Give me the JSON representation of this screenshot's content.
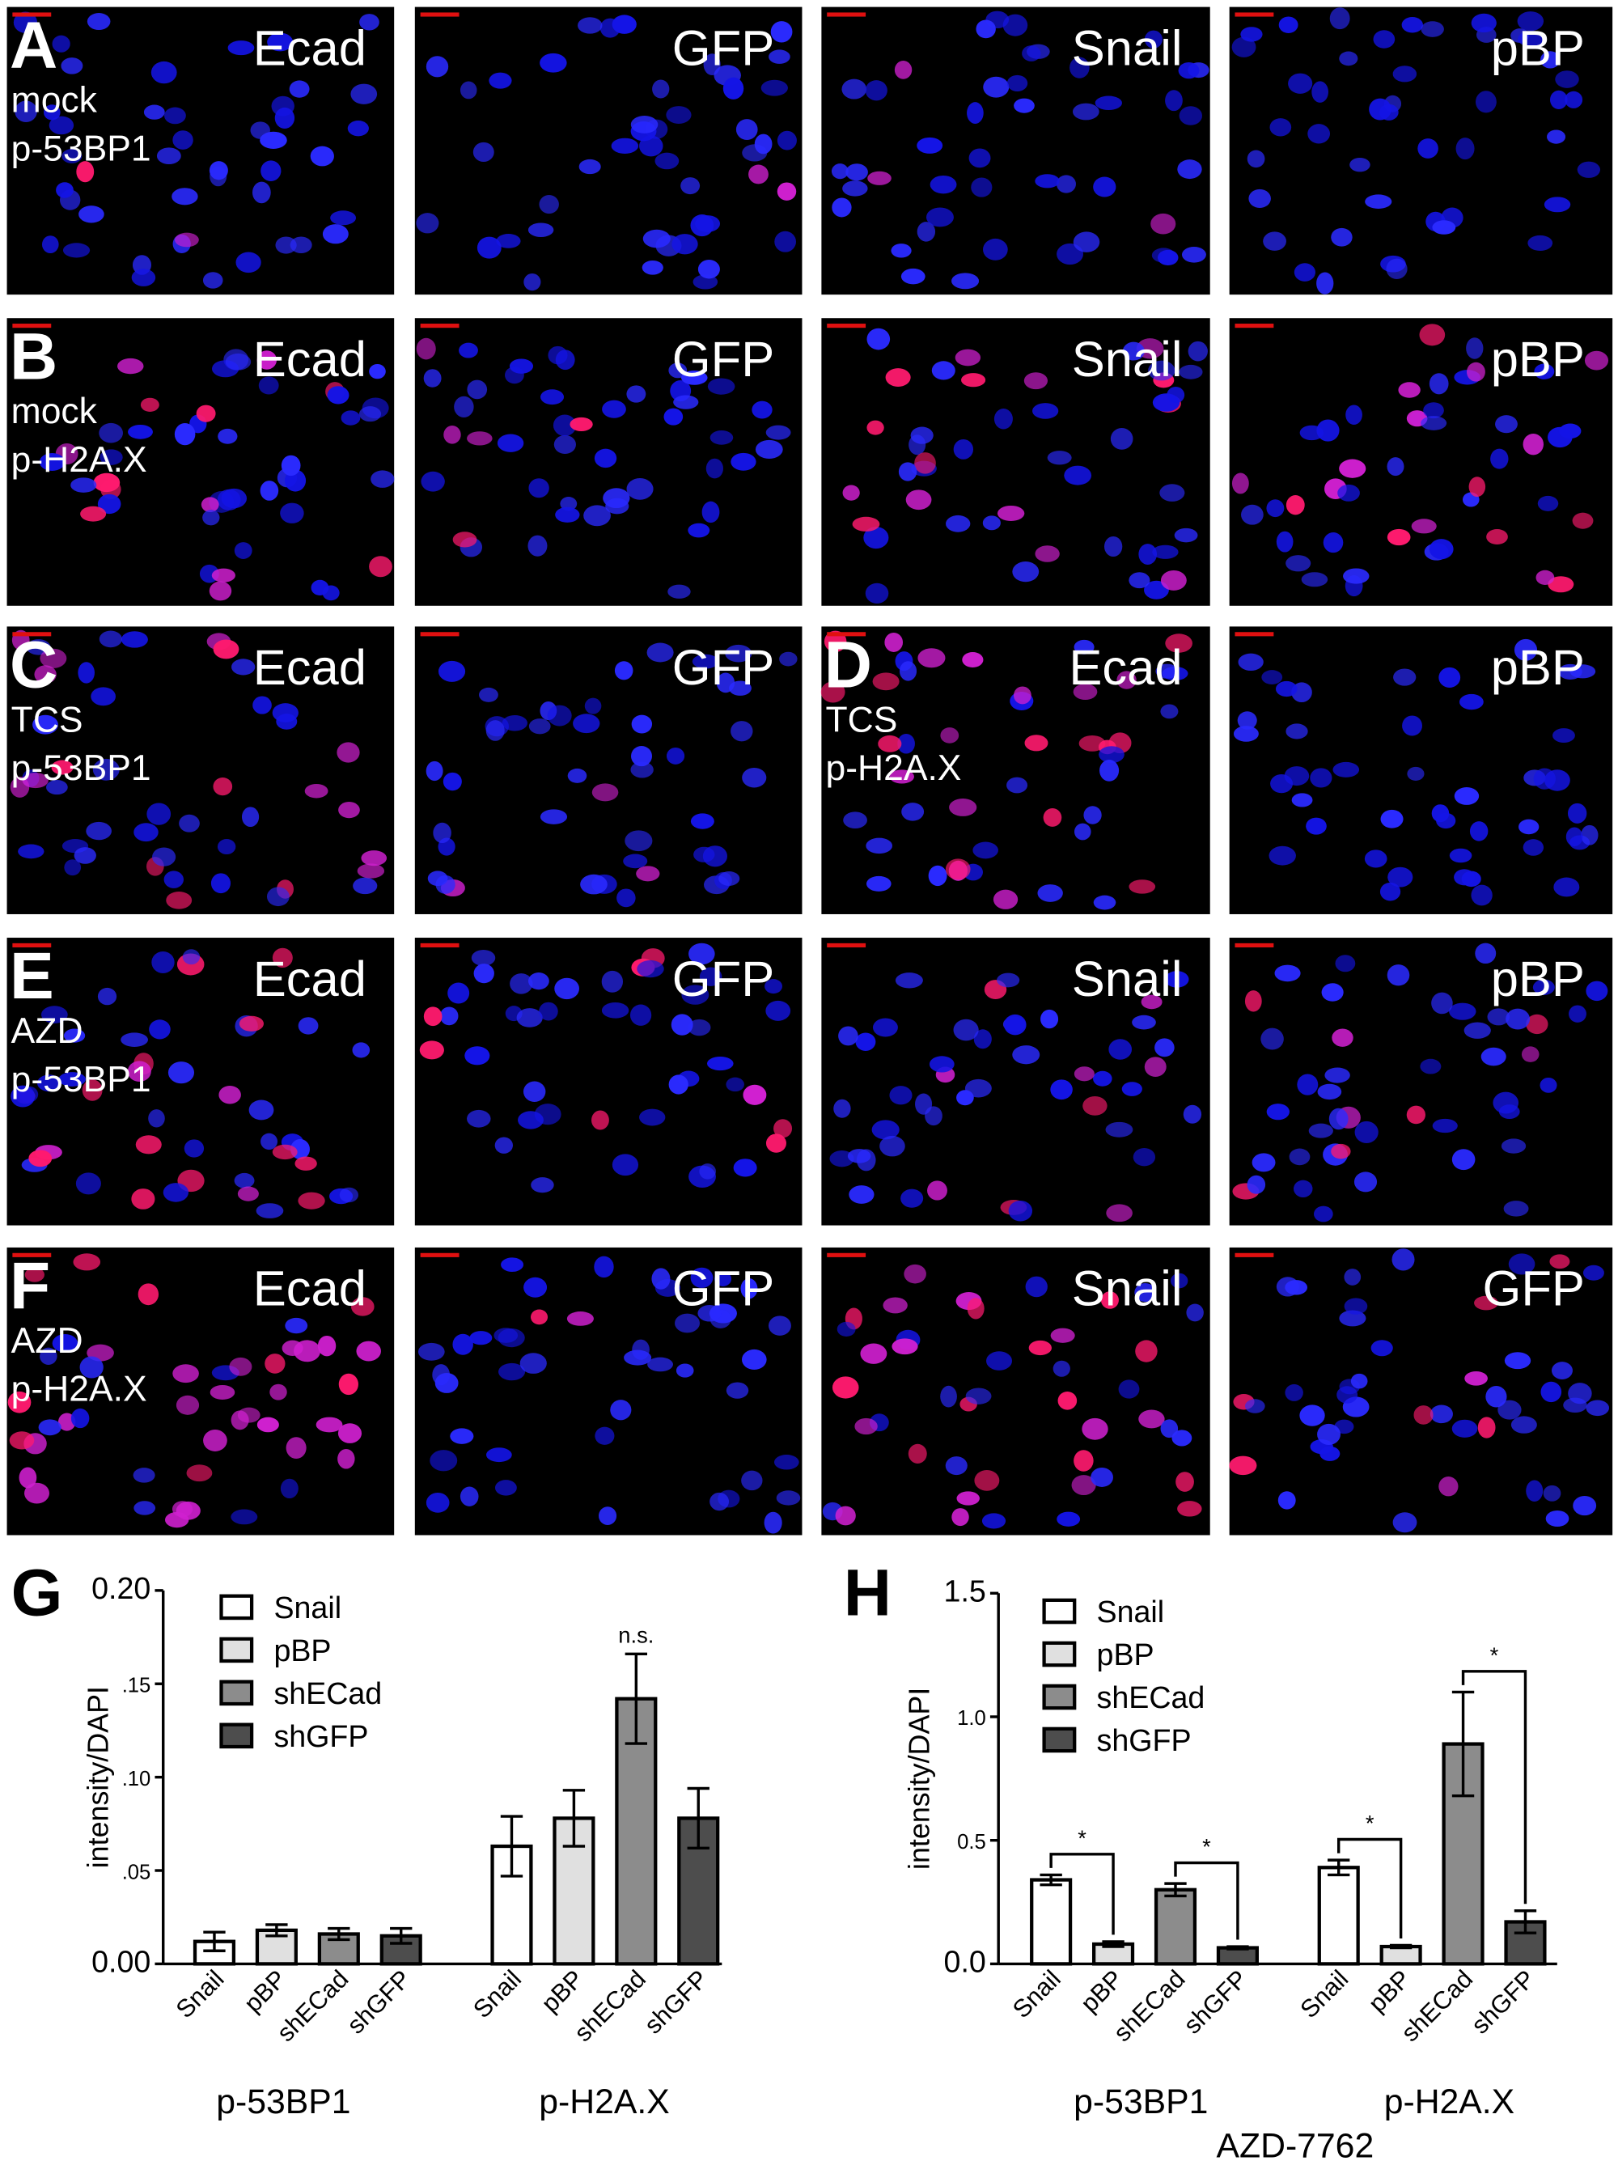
{
  "panels": [
    {
      "cells": [
        {
          "letter": "A",
          "lines": [
            "mock",
            "p-53BP1"
          ],
          "label": "Ecad"
        },
        {
          "label": "GFP"
        },
        {
          "label": "Snail"
        },
        {
          "label": "pBP"
        }
      ]
    },
    {
      "cells": [
        {
          "letter": "B",
          "lines": [
            "mock",
            "p-H2A.X"
          ],
          "label": "Ecad"
        },
        {
          "label": "GFP"
        },
        {
          "label": "Snail"
        },
        {
          "label": "pBP"
        }
      ]
    },
    {
      "cells": [
        {
          "letter": "C",
          "lines": [
            "TCS",
            "p-53BP1"
          ],
          "label": "Ecad"
        },
        {
          "label": "GFP"
        },
        {
          "letter": "D",
          "lines": [
            "TCS",
            "p-H2A.X"
          ],
          "label": "Ecad"
        },
        {
          "label": "pBP"
        }
      ]
    },
    {
      "cells": [
        {
          "letter": "E",
          "lines": [
            "AZD",
            "p-53BP1"
          ],
          "label": "Ecad"
        },
        {
          "label": "GFP"
        },
        {
          "label": "Snail"
        },
        {
          "label": "pBP"
        }
      ]
    },
    {
      "cells": [
        {
          "letter": "F",
          "lines": [
            "AZD",
            "p-H2A.X"
          ],
          "label": "Ecad"
        },
        {
          "label": "GFP"
        },
        {
          "label": "Snail"
        },
        {
          "label": "GFP"
        }
      ]
    }
  ],
  "chart_data": [
    {
      "type": "bar",
      "panel": "G",
      "ylabel": "intensity/DAPI",
      "categories": [
        "p-53BP1",
        "p-H2A.X"
      ],
      "series": [
        {
          "name": "Snail",
          "color": "#ffffff",
          "values": [
            0.012,
            0.063
          ],
          "errors": [
            0.005,
            0.016
          ]
        },
        {
          "name": "pBP",
          "color": "#e0e0e0",
          "values": [
            0.018,
            0.078
          ],
          "errors": [
            0.003,
            0.015
          ]
        },
        {
          "name": "shECad",
          "color": "#8c8c8c",
          "values": [
            0.016,
            0.142
          ],
          "errors": [
            0.003,
            0.024
          ]
        },
        {
          "name": "shGFP",
          "color": "#4d4d4d",
          "values": [
            0.015,
            0.078
          ],
          "errors": [
            0.004,
            0.016
          ]
        }
      ],
      "ylim": [
        0,
        0.2
      ],
      "yticks": [
        {
          "value": 0,
          "label": "0.00"
        },
        {
          "value": 0.05,
          "label": ".05"
        },
        {
          "value": 0.1,
          "label": ".10"
        },
        {
          "value": 0.15,
          "label": ".15"
        },
        {
          "value": 0.2,
          "label": "0.20"
        }
      ],
      "annotations": [
        "n.s."
      ]
    },
    {
      "type": "bar",
      "panel": "H",
      "ylabel": "intensity/DAPI",
      "xlabel": "AZD-7762",
      "categories": [
        "p-53BP1",
        "p-H2A.X"
      ],
      "series": [
        {
          "name": "Snail",
          "color": "#ffffff",
          "values": [
            0.34,
            0.39
          ],
          "errors": [
            0.02,
            0.03
          ]
        },
        {
          "name": "pBP",
          "color": "#e0e0e0",
          "values": [
            0.08,
            0.07
          ],
          "errors": [
            0.01,
            0.005
          ]
        },
        {
          "name": "shECad",
          "color": "#8c8c8c",
          "values": [
            0.3,
            0.89
          ],
          "errors": [
            0.025,
            0.21
          ]
        },
        {
          "name": "shGFP",
          "color": "#4d4d4d",
          "values": [
            0.065,
            0.17
          ],
          "errors": [
            0.005,
            0.045
          ]
        }
      ],
      "ylim": [
        0,
        1.5
      ],
      "yticks": [
        {
          "value": 0,
          "label": "0.0"
        },
        {
          "value": 0.5,
          "label": "0.5"
        },
        {
          "value": 1,
          "label": "1.0"
        },
        {
          "value": 1.5,
          "label": "1.5"
        }
      ],
      "annotations": [
        "*",
        "*",
        "*",
        "*"
      ]
    }
  ]
}
